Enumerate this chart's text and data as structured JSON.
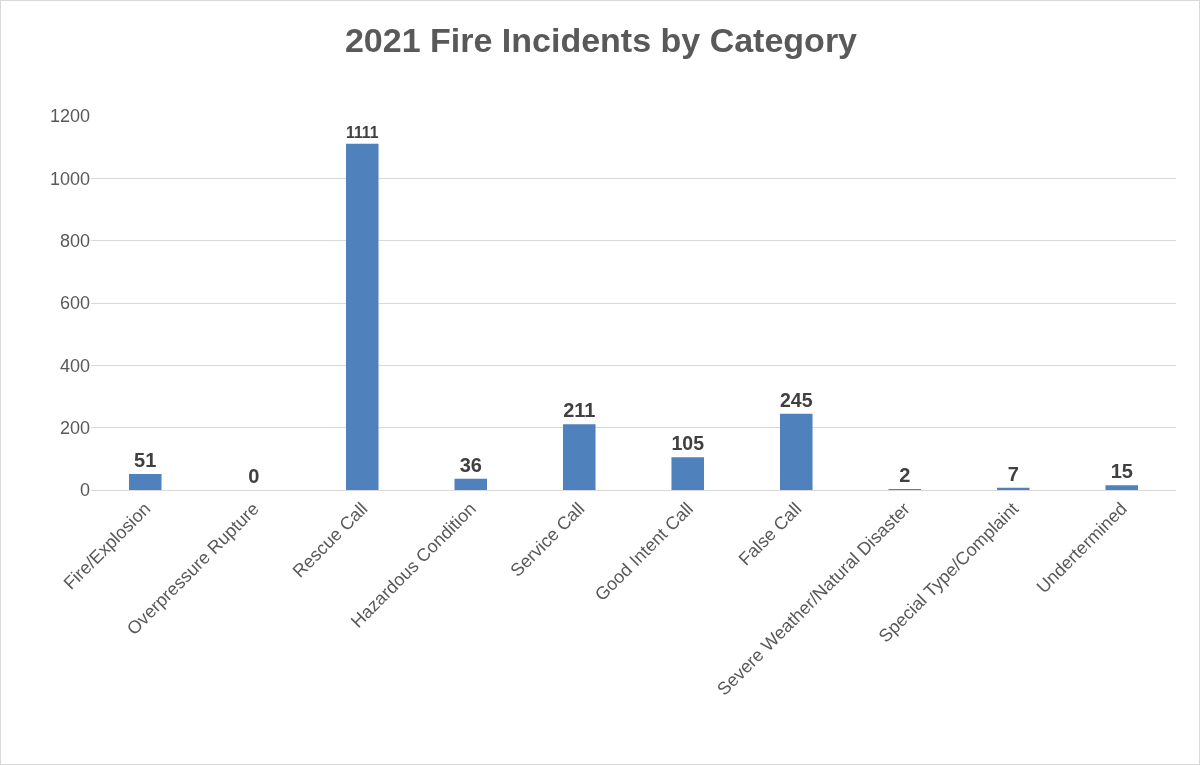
{
  "chart_data": {
    "type": "bar",
    "title": "2021 Fire Incidents by Category",
    "categories": [
      "Fire/Explosion",
      "Overpressure Rupture",
      "Rescue Call",
      "Hazardous Condition",
      "Service Call",
      "Good Intent Call",
      "False Call",
      "Severe Weather/Natural Disaster",
      "Special Type/Complaint",
      "Undertermined"
    ],
    "values": [
      51,
      0,
      1111,
      36,
      211,
      105,
      245,
      2,
      7,
      15
    ],
    "color": "#4f81bd",
    "ylim": [
      0,
      1200
    ],
    "yticks": [
      0,
      200,
      400,
      600,
      800,
      1000,
      1200
    ],
    "grid": "y",
    "data_labels": true,
    "legend": false
  }
}
